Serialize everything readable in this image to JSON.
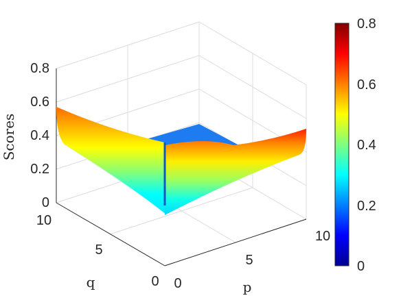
{
  "chart_data": {
    "type": "surface",
    "title": "",
    "zlabel": "Scores",
    "xlabel": "p",
    "ylabel": "q",
    "zlim": [
      0,
      0.8
    ],
    "z_ticks": [
      "0",
      "0.2",
      "0.4",
      "0.6",
      "0.8"
    ],
    "p_ticks": [
      "0",
      "5",
      "10"
    ],
    "q_ticks": [
      "0",
      "5",
      "10"
    ],
    "colorbar": {
      "colormap": "jet",
      "range": [
        0,
        0.8
      ],
      "ticks": [
        "0",
        "0.2",
        "0.4",
        "0.6",
        "0.8"
      ]
    },
    "grid": true,
    "series": [
      {
        "description_of_surface": "V-shaped score surface over p,q in [0,10]",
        "edge_scores": {
          "corner_p0_q10_top": 0.57,
          "corner_p10_q0_top": 0.43,
          "min_near_origin": 0.05,
          "inner_fold_top": 0.6
        }
      }
    ],
    "colors": {
      "flat_plane": "#1e7cf0"
    }
  }
}
